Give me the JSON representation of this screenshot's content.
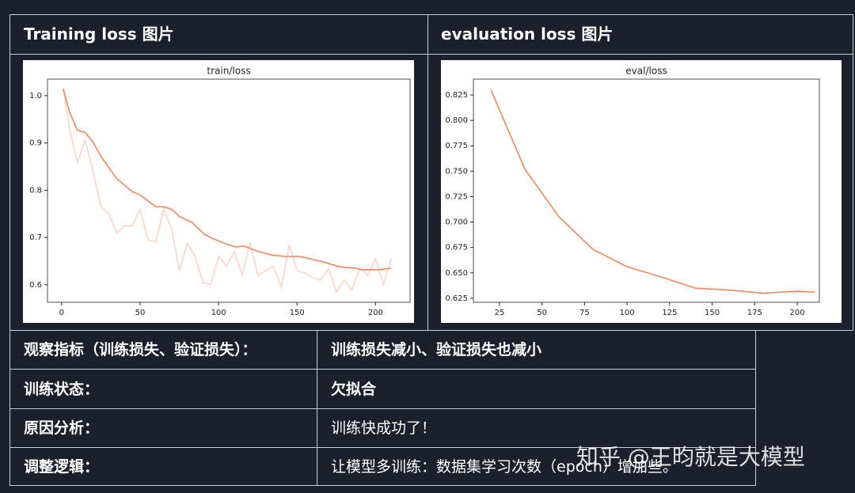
{
  "header": [
    "Training loss 图片",
    "evaluation loss 图片"
  ],
  "chart_data": [
    {
      "type": "line",
      "title": "train/loss",
      "xlim": [
        -9,
        222
      ],
      "ylim": [
        0.563,
        1.035
      ],
      "xticks": [
        0,
        50,
        100,
        150,
        200
      ],
      "yticks": [
        {
          "value": 1,
          "label": "1.0"
        },
        0.9,
        0.8,
        0.7,
        0.6
      ],
      "series": [
        {
          "color": "#fcd5c6",
          "x": [
            1,
            5,
            10,
            15,
            20,
            25,
            30,
            35,
            40,
            45,
            50,
            55,
            60,
            65,
            70,
            75,
            80,
            85,
            90,
            95,
            100,
            105,
            110,
            115,
            120,
            125,
            130,
            135,
            140,
            145,
            150,
            155,
            160,
            165,
            170,
            175,
            180,
            185,
            190,
            195,
            200,
            205,
            210
          ],
          "values": [
            1.015,
            0.93,
            0.86,
            0.905,
            0.84,
            0.765,
            0.75,
            0.71,
            0.725,
            0.725,
            0.76,
            0.695,
            0.69,
            0.76,
            0.72,
            0.63,
            0.688,
            0.66,
            0.605,
            0.6,
            0.66,
            0.64,
            0.67,
            0.62,
            0.69,
            0.62,
            0.63,
            0.64,
            0.595,
            0.685,
            0.63,
            0.625,
            0.615,
            0.61,
            0.635,
            0.585,
            0.61,
            0.59,
            0.635,
            0.62,
            0.655,
            0.6,
            0.655
          ]
        },
        {
          "color": "#f2875d",
          "x": [
            1,
            5,
            10,
            15,
            20,
            25,
            35,
            45,
            50,
            60,
            65,
            70,
            75,
            83,
            91,
            96,
            106,
            111,
            116,
            124,
            134,
            142,
            152,
            162,
            167,
            177,
            187,
            192,
            202,
            210
          ],
          "values": [
            1.015,
            0.965,
            0.927,
            0.922,
            0.902,
            0.872,
            0.825,
            0.797,
            0.79,
            0.765,
            0.765,
            0.76,
            0.745,
            0.732,
            0.707,
            0.698,
            0.685,
            0.68,
            0.682,
            0.672,
            0.663,
            0.66,
            0.66,
            0.652,
            0.648,
            0.638,
            0.635,
            0.632,
            0.632,
            0.635
          ]
        }
      ]
    },
    {
      "type": "line",
      "title": "eval/loss",
      "xlim": [
        9.7,
        213
      ],
      "ylim": [
        0.621,
        0.8406
      ],
      "xticks": [
        25,
        50,
        75,
        100,
        125,
        150,
        175,
        200
      ],
      "yticks": [
        0.825,
        {
          "value": 0.8,
          "label": "0.800"
        },
        0.775,
        {
          "value": 0.75,
          "label": "0.750"
        },
        0.725,
        {
          "value": 0.7,
          "label": "0.700"
        },
        0.675,
        {
          "value": 0.65,
          "label": "0.650"
        },
        0.625
      ],
      "series": [
        {
          "color": "#f2875d",
          "x": [
            20,
            40,
            60,
            80,
            100,
            120,
            140,
            160,
            180,
            200,
            210
          ],
          "values": [
            0.83,
            0.752,
            0.705,
            0.673,
            0.656,
            0.646,
            0.635,
            0.633,
            0.63,
            0.632,
            0.631
          ]
        }
      ]
    }
  ],
  "table": {
    "rows": [
      [
        "观察指标（训练损失、验证损失）：",
        "训练损失减小、验证损失也减小"
      ],
      [
        "训练状态：",
        "欠拟合"
      ],
      [
        "原因分析：",
        "训练快成功了！"
      ],
      [
        "调整逻辑：",
        "让模型多训练：数据集学习次数（epoch）增加些。"
      ]
    ]
  },
  "watermark": "知乎 @王昀就是大模型"
}
